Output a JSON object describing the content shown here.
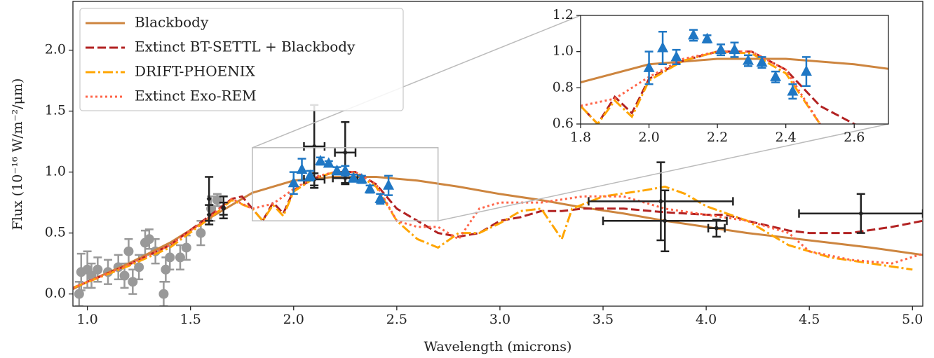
{
  "chart_data": [
    {
      "type": "line",
      "xlabel": "Wavelength (microns)",
      "ylabel": "Flux (10⁻¹⁶ W/m⁻²/μm)",
      "xlim": [
        0.93,
        5.05
      ],
      "ylim": [
        -0.1,
        2.4
      ],
      "xticks": [
        {
          "value": 1.0,
          "label": "1.0"
        },
        {
          "value": 1.5,
          "label": "1.5"
        },
        {
          "value": 2.0,
          "label": "2.0"
        },
        {
          "value": 2.5,
          "label": "2.5"
        },
        {
          "value": 3.0,
          "label": "3.0"
        },
        {
          "value": 3.5,
          "label": "3.5"
        },
        {
          "value": 4.0,
          "label": "4.0"
        },
        {
          "value": 4.5,
          "label": "4.5"
        },
        {
          "value": 5.0,
          "label": "5.0"
        }
      ],
      "yticks": [
        {
          "value": 0.0,
          "label": "0.0"
        },
        0.5,
        {
          "value": 1.0,
          "label": "1.0"
        },
        1.5,
        {
          "value": 2.0,
          "label": "2.0"
        }
      ],
      "legend": "upper left",
      "series": [
        {
          "name": "Blackbody",
          "color": "#cd853f",
          "style": "solid",
          "x": [
            0.93,
            1.0,
            1.2,
            1.4,
            1.6,
            1.8,
            2.0,
            2.2,
            2.4,
            2.6,
            2.8,
            3.0,
            3.2,
            3.4,
            3.6,
            3.8,
            4.0,
            4.2,
            4.4,
            4.6,
            4.8,
            5.05
          ],
          "values": [
            0.04,
            0.1,
            0.25,
            0.42,
            0.63,
            0.83,
            0.93,
            0.96,
            0.96,
            0.93,
            0.88,
            0.82,
            0.77,
            0.71,
            0.66,
            0.6,
            0.55,
            0.5,
            0.46,
            0.42,
            0.38,
            0.32
          ]
        },
        {
          "name": "Extinct BT-SETTL + Blackbody",
          "color": "#b22222",
          "style": "dashed",
          "x": [
            0.93,
            1.2,
            1.4,
            1.6,
            1.7,
            1.75,
            1.8,
            1.85,
            1.9,
            1.95,
            2.0,
            2.1,
            2.2,
            2.3,
            2.4,
            2.45,
            2.5,
            2.6,
            2.7,
            2.8,
            2.9,
            3.0,
            3.1,
            3.2,
            3.3,
            3.4,
            3.6,
            3.8,
            4.0,
            4.1,
            4.2,
            4.3,
            4.4,
            4.5,
            4.7,
            4.9,
            5.05
          ],
          "values": [
            0.05,
            0.24,
            0.4,
            0.65,
            0.78,
            0.8,
            0.7,
            0.6,
            0.75,
            0.66,
            0.85,
            0.95,
            1.0,
            1.0,
            0.9,
            0.8,
            0.7,
            0.6,
            0.5,
            0.47,
            0.5,
            0.6,
            0.63,
            0.68,
            0.68,
            0.7,
            0.7,
            0.67,
            0.65,
            0.65,
            0.6,
            0.56,
            0.52,
            0.5,
            0.5,
            0.55,
            0.6
          ]
        },
        {
          "name": "DRIFT-PHOENIX",
          "color": "#ffa500",
          "style": "dashdot",
          "x": [
            0.93,
            1.2,
            1.4,
            1.6,
            1.7,
            1.8,
            1.85,
            1.9,
            1.95,
            2.0,
            2.1,
            2.2,
            2.3,
            2.4,
            2.5,
            2.6,
            2.7,
            2.8,
            2.9,
            3.0,
            3.1,
            3.2,
            3.3,
            3.35,
            3.5,
            3.7,
            3.8,
            3.9,
            4.0,
            4.2,
            4.4,
            4.6,
            4.8,
            5.0
          ],
          "values": [
            0.05,
            0.23,
            0.38,
            0.63,
            0.77,
            0.7,
            0.6,
            0.73,
            0.64,
            0.84,
            0.95,
            1.0,
            0.99,
            0.88,
            0.6,
            0.45,
            0.38,
            0.5,
            0.5,
            0.58,
            0.68,
            0.7,
            0.45,
            0.7,
            0.8,
            0.85,
            0.88,
            0.82,
            0.72,
            0.6,
            0.4,
            0.3,
            0.25,
            0.2
          ]
        },
        {
          "name": "Extinct Exo-REM",
          "color": "#ff6347",
          "style": "dotted",
          "x": [
            0.93,
            1.2,
            1.4,
            1.6,
            1.7,
            1.8,
            1.9,
            2.0,
            2.1,
            2.2,
            2.3,
            2.4,
            2.5,
            2.6,
            2.7,
            2.8,
            2.9,
            3.0,
            3.2,
            3.4,
            3.6,
            3.8,
            4.0,
            4.2,
            4.4,
            4.5,
            4.7,
            4.9,
            5.05
          ],
          "values": [
            0.05,
            0.24,
            0.4,
            0.64,
            0.78,
            0.7,
            0.74,
            0.86,
            0.96,
            1.0,
            1.0,
            0.9,
            0.6,
            0.55,
            0.55,
            0.45,
            0.7,
            0.75,
            0.75,
            0.8,
            0.8,
            0.7,
            0.65,
            0.6,
            0.5,
            0.35,
            0.28,
            0.25,
            0.33
          ]
        }
      ],
      "photometry": [
        {
          "color": "#999999",
          "marker": "circle",
          "x": [
            0.96,
            0.97,
            1.0,
            1.02,
            1.05,
            1.1,
            1.15,
            1.18,
            1.2,
            1.22,
            1.25,
            1.28,
            1.3,
            1.33,
            1.37,
            1.38,
            1.4,
            1.45,
            1.48,
            1.55,
            1.6,
            1.63
          ],
          "values": [
            0.0,
            0.18,
            0.2,
            0.15,
            0.2,
            0.18,
            0.22,
            0.15,
            0.35,
            0.1,
            0.22,
            0.42,
            0.45,
            0.35,
            0.0,
            0.2,
            0.3,
            0.3,
            0.38,
            0.5,
            0.7,
            0.77
          ],
          "yerr": [
            0.1,
            0.15,
            0.15,
            0.1,
            0.1,
            0.1,
            0.1,
            0.1,
            0.1,
            0.1,
            0.1,
            0.1,
            0.08,
            0.1,
            0.1,
            0.1,
            0.1,
            0.1,
            0.1,
            0.1,
            0.1,
            0.05
          ]
        },
        {
          "color": "#222222",
          "marker": "diamond",
          "x": [
            1.59,
            1.59,
            1.66,
            1.66,
            2.1,
            2.1,
            2.25,
            2.25,
            3.78,
            3.8,
            4.05,
            4.75
          ],
          "values": [
            0.78,
            0.65,
            0.71,
            0.7,
            1.21,
            0.94,
            1.16,
            0.95,
            0.76,
            0.6,
            0.54,
            0.66
          ],
          "xerr": [
            null,
            null,
            null,
            null,
            0.05,
            0.05,
            0.05,
            0.06,
            0.35,
            0.3,
            0.04,
            0.3
          ],
          "yerr": [
            0.18,
            0.08,
            0.09,
            0.05,
            0.34,
            0.05,
            0.25,
            0.05,
            0.32,
            0.25,
            0.07,
            0.16
          ]
        }
      ],
      "spectrum": {
        "color": "#1f77c4",
        "marker": "triangle",
        "x": [
          2.0,
          2.04,
          2.08,
          2.13,
          2.17,
          2.21,
          2.25,
          2.29,
          2.33,
          2.37,
          2.42,
          2.46
        ],
        "values": [
          0.91,
          1.02,
          0.97,
          1.09,
          1.07,
          1.01,
          1.01,
          0.95,
          0.94,
          0.86,
          0.78,
          0.89
        ],
        "yerr": [
          0.09,
          0.09,
          0.04,
          0.03,
          0.02,
          0.03,
          0.04,
          0.03,
          0.03,
          0.03,
          0.04,
          0.08
        ]
      }
    },
    {
      "type": "inset",
      "xlim": [
        1.8,
        2.7
      ],
      "ylim": [
        0.6,
        1.2
      ],
      "xticks": [
        1.8,
        {
          "value": 2.0,
          "label": "2.0"
        },
        2.2,
        2.4,
        2.6
      ],
      "yticks": [
        0.6,
        0.8,
        {
          "value": 1.0,
          "label": "1.0"
        },
        1.2
      ]
    }
  ]
}
